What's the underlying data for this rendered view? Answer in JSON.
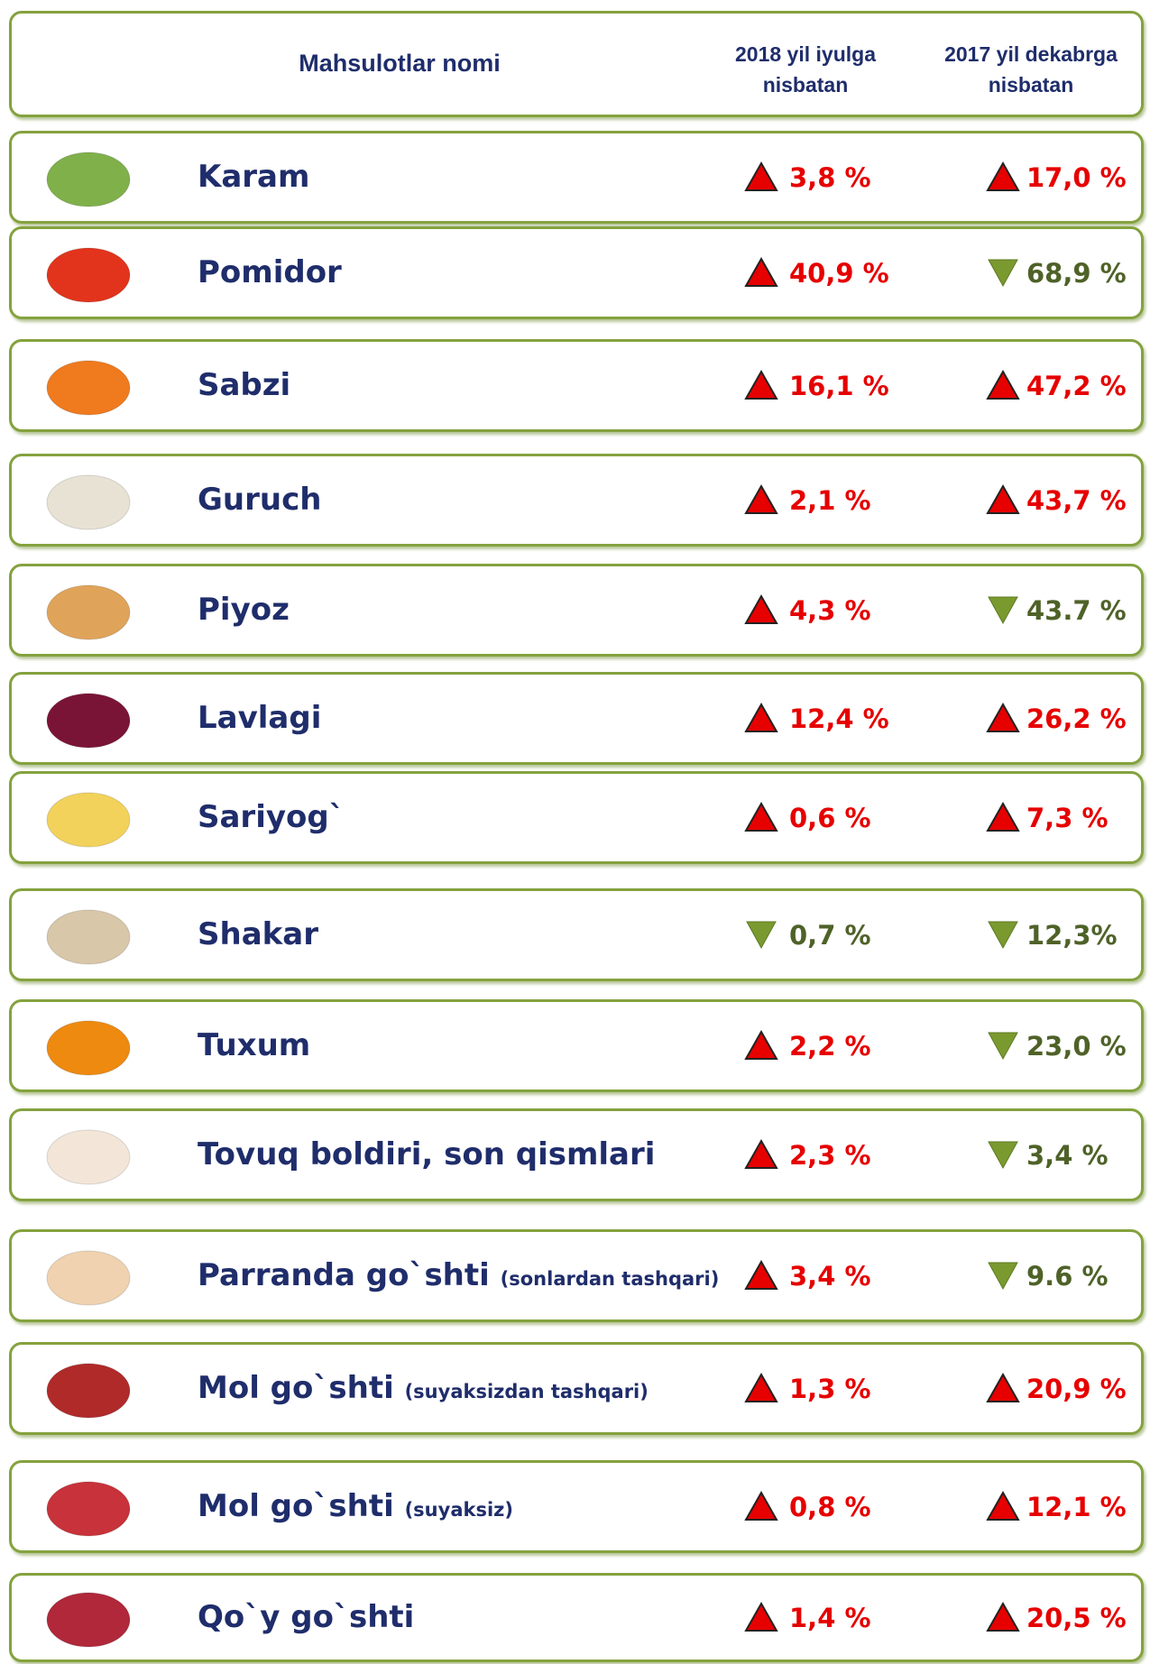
{
  "header": {
    "name": "Mahsulotlar nomi",
    "col1": [
      "2018 yil iyulga",
      "nisbatan"
    ],
    "col2": [
      "2017 yil dekabrga",
      "nisbatan"
    ]
  },
  "rows": [
    {
      "name": "Karam",
      "col1": "3,8 %",
      "dir1": "up",
      "col2": "17,0 %",
      "dir2": "up"
    },
    {
      "name": "Pomidor",
      "col1": "40,9 %",
      "dir1": "up",
      "col2": "68,9 %",
      "dir2": "down"
    },
    {
      "name": "Sabzi",
      "col1": "16,1 %",
      "dir1": "up",
      "col2": "47,2 %",
      "dir2": "up"
    },
    {
      "name": "Guruch",
      "col1": "2,1 %",
      "dir1": "up",
      "col2": "43,7 %",
      "dir2": "up"
    },
    {
      "name": "Piyoz",
      "col1": "4,3 %",
      "dir1": "up",
      "col2": "43.7 %",
      "dir2": "down"
    },
    {
      "name": "Lavlagi",
      "col1": "12,4 %",
      "dir1": "up",
      "col2": "26,2 %",
      "dir2": "up"
    },
    {
      "name": "Sariyog`",
      "col1": "0,6 %",
      "dir1": "up",
      "col2": "7,3 %",
      "dir2": "up"
    },
    {
      "name": "Shakar",
      "col1": "0,7 %",
      "dir1": "down",
      "col2": "12,3%",
      "dir2": "down"
    },
    {
      "name": "Tuxum",
      "col1": "2,2 %",
      "dir1": "up",
      "col2": "23,0 %",
      "dir2": "down"
    },
    {
      "name": "Tovuq boldiri, son qismlari",
      "col1": "2,3 %",
      "dir1": "up",
      "col2": "3,4 %",
      "dir2": "down"
    },
    {
      "name": "Parranda go`shti",
      "note": "(sonlardan tashqari)",
      "col1": "3,4 %",
      "dir1": "up",
      "col2": "9.6 %",
      "dir2": "down"
    },
    {
      "name": "Mol go`shti",
      "note": "(suyaksizdan tashqari)",
      "col1": "1,3 %",
      "dir1": "up",
      "col2": "20,9 %",
      "dir2": "up"
    },
    {
      "name": "Mol go`shti",
      "note": "(suyaksiz)",
      "col1": "0,8 %",
      "dir1": "up",
      "col2": "12,1 %",
      "dir2": "up"
    },
    {
      "name": "Qo`y go`shti",
      "col1": "1,4 %",
      "dir1": "up",
      "col2": "20,5 %",
      "dir2": "up"
    }
  ]
}
